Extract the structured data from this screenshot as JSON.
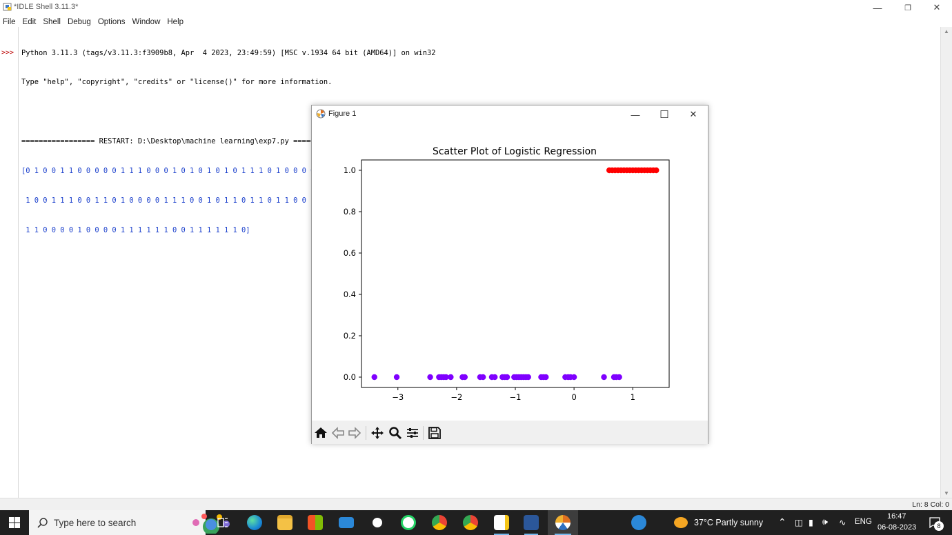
{
  "window": {
    "title": "*IDLE Shell 3.11.3*"
  },
  "menu": [
    "File",
    "Edit",
    "Shell",
    "Debug",
    "Options",
    "Window",
    "Help"
  ],
  "shell": {
    "prompt": ">>>",
    "lines": [
      "Python 3.11.3 (tags/v3.11.3:f3909b8, Apr  4 2023, 23:49:59) [MSC v.1934 64 bit (AMD64)] on win32",
      "Type \"help\", \"copyright\", \"credits\" or \"license()\" for more information."
    ],
    "restart_line": "================= RESTART: D:\\Desktop\\machine learning\\exp7.py =================",
    "output_lines": [
      "[0 1 0 0 1 1 0 0 0 0 0 1 1 1 0 0 0 1 0 1 0 1 0 1 0 1 1 1 0 1 0 0 0 0 1 1 0",
      " 1 0 0 1 1 1 0 0 1 1 0 1 0 0 0 0 1 1 1 0 0 1 0 1 1 0 1 1 0 1 1 0 0 1 1 0 0",
      " 1 1 0 0 0 0 1 0 0 0 0 1 1 1 1 1 1 0 0 1 1 1 1 1 1 0]"
    ]
  },
  "status": {
    "text": "Ln: 8   Col: 0"
  },
  "figure": {
    "title": "Figure 1",
    "toolbar": [
      "home-icon",
      "back-icon",
      "forward-icon",
      "pan-icon",
      "zoom-icon",
      "configure-icon",
      "save-icon"
    ]
  },
  "chart_data": {
    "type": "scatter",
    "title": "Scatter Plot of Logistic Regression",
    "xlabel": "",
    "ylabel": "",
    "xlim": [
      -3.62,
      1.62
    ],
    "ylim": [
      -0.05,
      1.05
    ],
    "xticks": [
      -3,
      -2,
      -1,
      0,
      1
    ],
    "xtick_labels": [
      "−3",
      "−2",
      "−1",
      "0",
      "1"
    ],
    "yticks": [
      0.0,
      0.2,
      0.4,
      0.6,
      0.8,
      1.0
    ],
    "ytick_labels": [
      "0.0",
      "0.2",
      "0.4",
      "0.6",
      "0.8",
      "1.0"
    ],
    "grid": false,
    "series": [
      {
        "color": "#7f00ff",
        "x": [
          -3.4,
          -3.02,
          -2.45,
          -2.3,
          -2.26,
          -2.22,
          -2.18,
          -2.1,
          -1.9,
          -1.86,
          -1.6,
          -1.55,
          -1.4,
          -1.35,
          -1.22,
          -1.18,
          -1.14,
          -1.02,
          -0.98,
          -0.94,
          -0.9,
          -0.86,
          -0.82,
          -0.78,
          -0.56,
          -0.52,
          -0.48,
          -0.15,
          -0.1,
          -0.06,
          0.0,
          0.51,
          0.68,
          0.72,
          0.77
        ],
        "y": [
          0,
          0,
          0,
          0,
          0,
          0,
          0,
          0,
          0,
          0,
          0,
          0,
          0,
          0,
          0,
          0,
          0,
          0,
          0,
          0,
          0,
          0,
          0,
          0,
          0,
          0,
          0,
          0,
          0,
          0,
          0,
          0,
          0,
          0,
          0
        ]
      },
      {
        "color": "#ff0000",
        "x": [
          0.6,
          0.65,
          0.7,
          0.75,
          0.8,
          0.85,
          0.9,
          0.95,
          1.0,
          1.05,
          1.1,
          1.15,
          1.2,
          1.25,
          1.3,
          1.35,
          1.4
        ],
        "y": [
          1,
          1,
          1,
          1,
          1,
          1,
          1,
          1,
          1,
          1,
          1,
          1,
          1,
          1,
          1,
          1,
          1
        ]
      }
    ]
  },
  "taskbar": {
    "search_placeholder": "Type here to search",
    "weather": "37°C  Partly sunny",
    "language": "ENG",
    "time": "16:47",
    "date": "06-08-2023",
    "notifications": "8"
  }
}
